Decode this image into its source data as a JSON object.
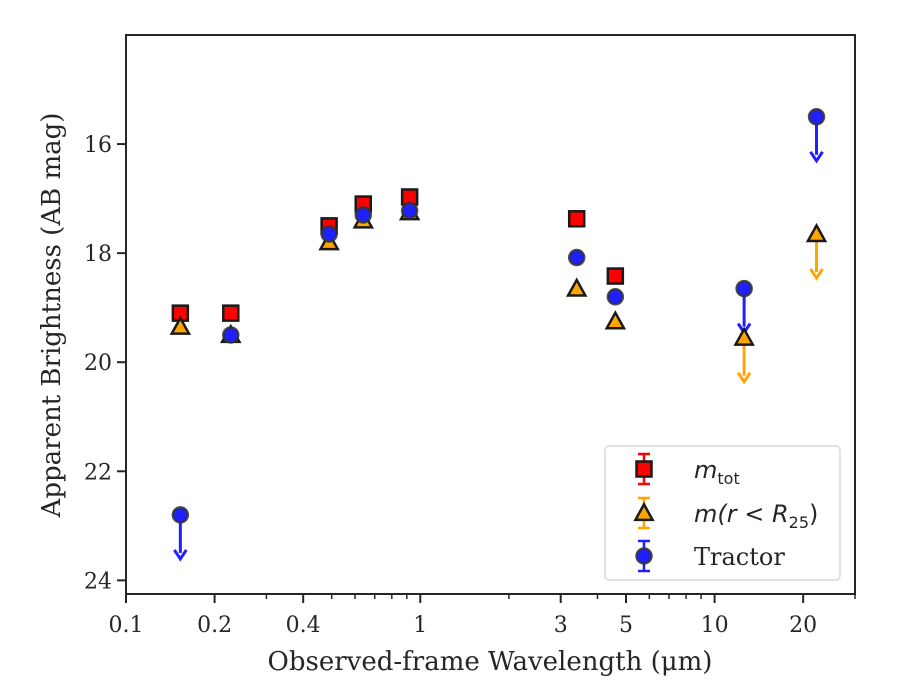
{
  "chart_data": {
    "type": "scatter",
    "xlabel": "Observed-frame Wavelength (μm)",
    "ylabel": "Apparent Brightness (AB mag)",
    "x_scale": "log",
    "xlim": [
      0.1,
      30
    ],
    "ylim": [
      24.25,
      14.0
    ],
    "y_inverted": true,
    "x_ticks": [
      {
        "value": 0.1,
        "label": "0.1"
      },
      {
        "value": 0.2,
        "label": "0.2"
      },
      {
        "value": 0.4,
        "label": "0.4"
      },
      {
        "value": 1,
        "label": "1"
      },
      {
        "value": 3,
        "label": "3"
      },
      {
        "value": 5,
        "label": "5"
      },
      {
        "value": 10,
        "label": "10"
      },
      {
        "value": 20,
        "label": "20"
      }
    ],
    "y_ticks": [
      {
        "value": 16,
        "label": "16"
      },
      {
        "value": 18,
        "label": "18"
      },
      {
        "value": 20,
        "label": "20"
      },
      {
        "value": 22,
        "label": "22"
      },
      {
        "value": 24,
        "label": "24"
      }
    ],
    "grid": false,
    "legend_position": "lower-right",
    "series": [
      {
        "name_base": "m",
        "name_sub": "tot",
        "marker": "square",
        "color": "#ff0000",
        "edge": "#1a1a1a",
        "errcolor": "#ff0000",
        "points": [
          {
            "x": 0.153,
            "y": 19.1
          },
          {
            "x": 0.227,
            "y": 19.1
          },
          {
            "x": 0.49,
            "y": 17.5
          },
          {
            "x": 0.64,
            "y": 17.1
          },
          {
            "x": 0.92,
            "y": 16.97
          },
          {
            "x": 3.4,
            "y": 17.37
          },
          {
            "x": 4.6,
            "y": 18.42
          }
        ],
        "upper_limits": []
      },
      {
        "name_base": "m(r < R",
        "name_sub": "25",
        "name_tail": ")",
        "marker": "triangle",
        "color": "#ffa500",
        "edge": "#1a1a1a",
        "errcolor": "#ffa500",
        "points": [
          {
            "x": 0.153,
            "y": 19.35
          },
          {
            "x": 0.227,
            "y": 19.5
          },
          {
            "x": 0.49,
            "y": 17.8
          },
          {
            "x": 0.64,
            "y": 17.4
          },
          {
            "x": 0.92,
            "y": 17.25
          },
          {
            "x": 3.4,
            "y": 18.65
          },
          {
            "x": 4.6,
            "y": 19.25
          }
        ],
        "upper_limits": [
          {
            "x": 12.6,
            "y": 19.55
          },
          {
            "x": 22.2,
            "y": 17.65
          }
        ]
      },
      {
        "name": "Tractor",
        "marker": "circle",
        "color": "#1f1fff",
        "edge": "#333333",
        "errcolor": "#1f1fff",
        "points": [
          {
            "x": 0.227,
            "y": 19.5
          },
          {
            "x": 0.49,
            "y": 17.65
          },
          {
            "x": 0.64,
            "y": 17.3
          },
          {
            "x": 0.92,
            "y": 17.22
          },
          {
            "x": 3.4,
            "y": 18.08
          },
          {
            "x": 4.6,
            "y": 18.8
          }
        ],
        "upper_limits": [
          {
            "x": 0.153,
            "y": 22.8
          },
          {
            "x": 12.6,
            "y": 18.65
          },
          {
            "x": 22.2,
            "y": 15.5
          }
        ]
      }
    ]
  }
}
